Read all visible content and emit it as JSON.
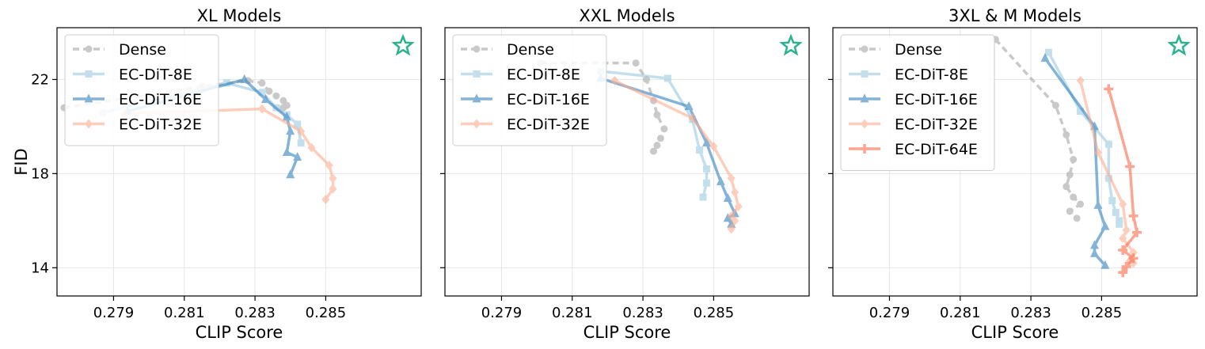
{
  "chart_data": [
    {
      "type": "line",
      "title": "XL Models",
      "xlabel": "CLIP Score",
      "ylabel": "FID",
      "xlim": [
        0.2774,
        0.2877
      ],
      "ylim": [
        24.2,
        12.8
      ],
      "xticks": [
        "0.279",
        "0.281",
        "0.283",
        "0.285"
      ],
      "yticks": [
        "14",
        "18",
        "22"
      ],
      "legend": "top-left",
      "series": [
        {
          "name": "Dense",
          "x": [
            0.2776,
            0.2815,
            0.2828,
            0.2832,
            0.2834,
            0.2836,
            0.2838,
            0.2839,
            0.2838
          ],
          "y": [
            20.8,
            21.7,
            21.95,
            21.85,
            21.5,
            21.3,
            21.1,
            20.9,
            20.8
          ]
        },
        {
          "name": "EC-DiT-8E",
          "x": [
            0.2787,
            0.2822,
            0.2832,
            0.2836,
            0.2839,
            0.2842,
            0.2843
          ],
          "y": [
            20.6,
            21.85,
            21.45,
            20.8,
            20.5,
            20.1,
            19.3
          ]
        },
        {
          "name": "EC-DiT-16E",
          "x": [
            0.2794,
            0.2827,
            0.2833,
            0.2839,
            0.284,
            0.2839,
            0.2842,
            0.284
          ],
          "y": [
            20.65,
            22.0,
            21.15,
            20.4,
            19.8,
            18.9,
            18.7,
            17.95
          ]
        },
        {
          "name": "EC-DiT-32E",
          "x": [
            0.2793,
            0.2832,
            0.2843,
            0.2846,
            0.2851,
            0.2852,
            0.2852,
            0.285
          ],
          "y": [
            20.55,
            20.75,
            19.8,
            19.1,
            18.35,
            17.8,
            17.35,
            16.9
          ]
        }
      ],
      "star": true
    },
    {
      "type": "line",
      "title": "XXL Models",
      "xlabel": "CLIP Score",
      "ylabel": "",
      "xlim": [
        0.2774,
        0.2877
      ],
      "ylim": [
        24.2,
        12.8
      ],
      "xticks": [
        "0.279",
        "0.281",
        "0.283",
        "0.285"
      ],
      "yticks": [
        "14",
        "18",
        "22"
      ],
      "legend": "top-left",
      "series": [
        {
          "name": "Dense",
          "x": [
            0.2801,
            0.2828,
            0.2831,
            0.2833,
            0.2834,
            0.2836,
            0.2835,
            0.2834,
            0.2833
          ],
          "y": [
            22.7,
            22.7,
            22.0,
            21.1,
            20.5,
            19.9,
            19.5,
            19.2,
            18.95
          ]
        },
        {
          "name": "EC-DiT-8E",
          "x": [
            0.2818,
            0.2837,
            0.2844,
            0.2846,
            0.2848,
            0.2848,
            0.2847
          ],
          "y": [
            22.35,
            22.05,
            20.3,
            19.0,
            18.2,
            17.6,
            17.0
          ]
        },
        {
          "name": "EC-DiT-16E",
          "x": [
            0.2818,
            0.2843,
            0.2848,
            0.2852,
            0.2854,
            0.2856,
            0.2854,
            0.2855
          ],
          "y": [
            22.05,
            20.85,
            19.3,
            17.65,
            16.95,
            16.3,
            16.1,
            15.85
          ]
        },
        {
          "name": "EC-DiT-32E",
          "x": [
            0.2822,
            0.2844,
            0.285,
            0.2855,
            0.2856,
            0.2857,
            0.2855,
            0.2856,
            0.2855
          ],
          "y": [
            21.95,
            20.35,
            19.15,
            17.8,
            17.2,
            16.6,
            16.2,
            16.0,
            15.65
          ]
        }
      ],
      "star": true
    },
    {
      "type": "line",
      "title": "3XL & M Models",
      "xlabel": "CLIP Score",
      "ylabel": "",
      "xlim": [
        0.2774,
        0.2877
      ],
      "ylim": [
        24.2,
        12.8
      ],
      "xticks": [
        "0.279",
        "0.281",
        "0.283",
        "0.285"
      ],
      "yticks": [
        "14",
        "18",
        "22"
      ],
      "legend": "top-left",
      "series": [
        {
          "name": "Dense",
          "x": [
            0.282,
            0.2837,
            0.284,
            0.2842,
            0.2841,
            0.284,
            0.2842,
            0.2844,
            0.2841,
            0.2843
          ],
          "y": [
            23.7,
            20.9,
            19.65,
            18.6,
            17.95,
            17.45,
            17.0,
            16.7,
            16.4,
            16.1
          ]
        },
        {
          "name": "EC-DiT-8E",
          "x": [
            0.2835,
            0.2844,
            0.2852,
            0.2852,
            0.2853,
            0.2854,
            0.2855,
            0.2855
          ],
          "y": [
            23.15,
            20.65,
            19.25,
            17.8,
            16.85,
            16.35,
            16.0,
            15.85
          ]
        },
        {
          "name": "EC-DiT-16E",
          "x": [
            0.2834,
            0.2848,
            0.2849,
            0.2851,
            0.2848,
            0.2848,
            0.2851
          ],
          "y": [
            22.9,
            20.0,
            16.65,
            15.75,
            14.95,
            14.6,
            14.1
          ]
        },
        {
          "name": "EC-DiT-32E",
          "x": [
            0.2844,
            0.2849,
            0.2856,
            0.2857,
            0.2856,
            0.2859,
            0.2858,
            0.2859
          ],
          "y": [
            21.95,
            18.9,
            16.7,
            15.6,
            15.25,
            14.65,
            14.3,
            14.2
          ]
        },
        {
          "name": "EC-DiT-64E",
          "x": [
            0.2852,
            0.2858,
            0.2859,
            0.286,
            0.2856,
            0.2859,
            0.2857,
            0.2856
          ],
          "y": [
            21.6,
            18.3,
            16.2,
            15.5,
            14.75,
            14.4,
            14.05,
            13.8
          ]
        }
      ],
      "star": true
    }
  ]
}
